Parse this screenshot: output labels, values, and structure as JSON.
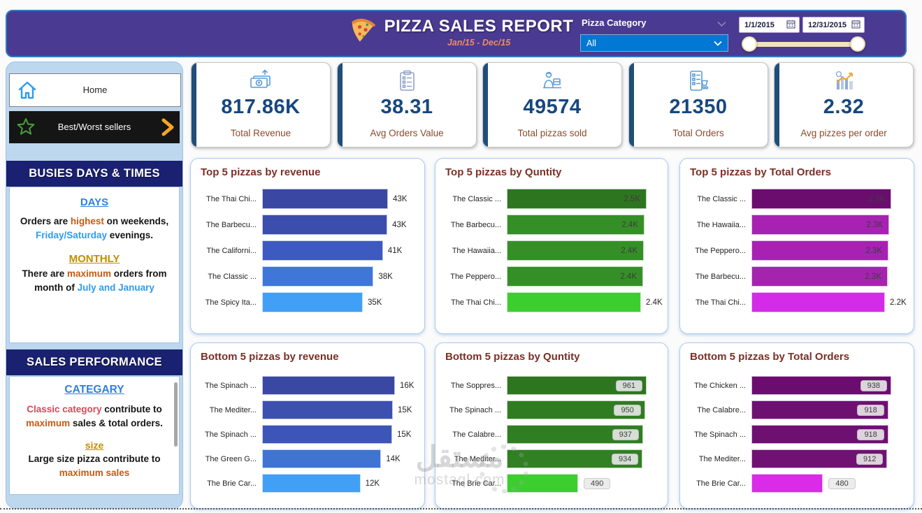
{
  "header": {
    "title": "PIZZA SALES REPORT",
    "subtitle": "Jan/15 - Dec/15",
    "category_label": "Pizza Category",
    "category_selected": "All",
    "date_start": "1/1/2015",
    "date_end": "12/31/2015"
  },
  "sidebar": {
    "home": "Home",
    "best_worst": "Best/Worst sellers",
    "section1_title": "BUSIES DAYS & TIMES",
    "days": {
      "heading": "DAYS",
      "p1": "Orders are ",
      "p2": "highest",
      "p3": " on weekends, ",
      "p4": "Friday/Saturday",
      "p5": " evenings."
    },
    "monthly": {
      "heading": "MONTHLY",
      "p1": "There are ",
      "p2": "maximum",
      "p3": " orders from month of ",
      "p4": "July and January"
    },
    "section2_title": "SALES PERFORMANCE",
    "category": {
      "heading": "CATEGARY",
      "p1": "Classic category",
      "p2": " contribute to ",
      "p3": "maximum",
      "p4": " sales & total orders."
    },
    "size": {
      "heading": "size",
      "p1": "Large size pizza contribute to ",
      "p2": "maximum sales"
    }
  },
  "kpis": [
    {
      "icon": "money-growth-icon",
      "value": "817.86K",
      "label": "Total Revenue"
    },
    {
      "icon": "clipboard-icon",
      "value": "38.31",
      "label": "Avg Orders Value"
    },
    {
      "icon": "delivery-person-icon",
      "value": "49574",
      "label": "Total pizzas sold"
    },
    {
      "icon": "order-list-cart-icon",
      "value": "21350",
      "label": "Total Orders"
    },
    {
      "icon": "analytics-chart-icon",
      "value": "2.32",
      "label": "Avg pizzes per order"
    }
  ],
  "chart_data": [
    {
      "id": "top-5-revenue",
      "type": "bar",
      "title": "Top 5 pizzas by revenue",
      "xlim": [
        0,
        43000
      ],
      "legend": "none",
      "grid": false,
      "rows": [
        {
          "name": "The Thai Chi...",
          "value": 43000,
          "label": "43K",
          "pct": 100,
          "color": "#3A47A3",
          "label_pos": "outside"
        },
        {
          "name": "The Barbecu...",
          "value": 43000,
          "label": "43K",
          "pct": 99.5,
          "color": "#3B4DAD",
          "label_pos": "outside"
        },
        {
          "name": "The Californi...",
          "value": 41000,
          "label": "41K",
          "pct": 96,
          "color": "#3D5AC0",
          "label_pos": "outside"
        },
        {
          "name": "The Classic ...",
          "value": 38000,
          "label": "38K",
          "pct": 88.5,
          "color": "#3E77D7",
          "label_pos": "outside"
        },
        {
          "name": "The Spicy Ita...",
          "value": 35000,
          "label": "35K",
          "pct": 80,
          "color": "#41A0F6",
          "label_pos": "outside"
        }
      ]
    },
    {
      "id": "top-5-quantity",
      "type": "bar",
      "title": "Top 5 pizzas by Quntity",
      "xlim": [
        0,
        2500
      ],
      "legend": "none",
      "grid": false,
      "rows": [
        {
          "name": "The Classic ...",
          "value": 2500,
          "label": "2.5K",
          "pct": 100,
          "color": "#2E7520",
          "label_pos": "inside"
        },
        {
          "name": "The Barbecu...",
          "value": 2400,
          "label": "2.4K",
          "pct": 98.5,
          "color": "#349026",
          "label_pos": "inside"
        },
        {
          "name": "The Hawaiia...",
          "value": 2400,
          "label": "2.4K",
          "pct": 98,
          "color": "#349026",
          "label_pos": "inside"
        },
        {
          "name": "The Peppero...",
          "value": 2400,
          "label": "2.4K",
          "pct": 97.5,
          "color": "#349026",
          "label_pos": "inside"
        },
        {
          "name": "The Thai Chi...",
          "value": 2400,
          "label": "2.4K",
          "pct": 96,
          "color": "#3CCE2F",
          "label_pos": "outside"
        }
      ]
    },
    {
      "id": "top-5-total-orders",
      "type": "bar",
      "title": "Top 5 pizzas by Total Orders",
      "xlim": [
        0,
        2300
      ],
      "legend": "none",
      "grid": false,
      "rows": [
        {
          "name": "The Classic ...",
          "value": 2300,
          "label": "2.3K",
          "pct": 100,
          "color": "#6A0D6E",
          "label_pos": "inside"
        },
        {
          "name": "The Hawaiia...",
          "value": 2300,
          "label": "2.3K",
          "pct": 98.5,
          "color": "#A722B2",
          "label_pos": "inside"
        },
        {
          "name": "The Peppero...",
          "value": 2300,
          "label": "2.3K",
          "pct": 98,
          "color": "#A722B2",
          "label_pos": "inside"
        },
        {
          "name": "The Barbecu...",
          "value": 2300,
          "label": "2.3K",
          "pct": 97.5,
          "color": "#A424AE",
          "label_pos": "inside"
        },
        {
          "name": "The Thai Chi...",
          "value": 2200,
          "label": "2.2K",
          "pct": 95.5,
          "color": "#D42BE8",
          "label_pos": "outside"
        }
      ]
    },
    {
      "id": "bottom-5-revenue",
      "type": "bar",
      "title": "Bottom 5 pizzas by revenue",
      "xlim": [
        0,
        16000
      ],
      "legend": "none",
      "grid": false,
      "rows": [
        {
          "name": "The Spinach ...",
          "value": 16000,
          "label": "16K",
          "pct": 100,
          "color": "#3A47A3",
          "label_pos": "outside"
        },
        {
          "name": "The Mediter...",
          "value": 15000,
          "label": "15K",
          "pct": 98.4,
          "color": "#3C50B0",
          "label_pos": "outside"
        },
        {
          "name": "The Spinach ...",
          "value": 15000,
          "label": "15K",
          "pct": 97.9,
          "color": "#3D55B8",
          "label_pos": "outside"
        },
        {
          "name": "The Green G...",
          "value": 14000,
          "label": "14K",
          "pct": 89.6,
          "color": "#3F74D3",
          "label_pos": "outside"
        },
        {
          "name": "The Brie Car...",
          "value": 12000,
          "label": "12K",
          "pct": 74,
          "color": "#41A0F6",
          "label_pos": "outside"
        }
      ]
    },
    {
      "id": "bottom-5-quantity",
      "type": "bar",
      "title": "Bottom 5 pizzas by Quntity",
      "xlim": [
        0,
        961
      ],
      "legend": "none",
      "grid": false,
      "rows": [
        {
          "name": "The Soppres...",
          "value": 961,
          "label": "961",
          "pct": 100,
          "color": "#2E7520",
          "label_pos": "pill-inside"
        },
        {
          "name": "The Spinach ...",
          "value": 950,
          "label": "950",
          "pct": 98.9,
          "color": "#2F7C21",
          "label_pos": "pill-inside"
        },
        {
          "name": "The Calabre...",
          "value": 937,
          "label": "937",
          "pct": 97.5,
          "color": "#307E22",
          "label_pos": "pill-inside"
        },
        {
          "name": "The Mediter...",
          "value": 934,
          "label": "934",
          "pct": 97.2,
          "color": "#318023",
          "label_pos": "pill-inside"
        },
        {
          "name": "The Brie Car...",
          "value": 490,
          "label": "490",
          "pct": 51,
          "color": "#3CCE2F",
          "label_pos": "pill-outside"
        }
      ]
    },
    {
      "id": "bottom-5-total-orders",
      "type": "bar",
      "title": "Bottom 5 pizzas by Total Orders",
      "xlim": [
        0,
        938
      ],
      "legend": "none",
      "grid": false,
      "rows": [
        {
          "name": "The Chicken ...",
          "value": 938,
          "label": "938",
          "pct": 100,
          "color": "#6A0D6E",
          "label_pos": "pill-inside"
        },
        {
          "name": "The Calabre...",
          "value": 918,
          "label": "918",
          "pct": 97.9,
          "color": "#6E1072",
          "label_pos": "pill-inside"
        },
        {
          "name": "The Spinach ...",
          "value": 918,
          "label": "918",
          "pct": 97.9,
          "color": "#6E1072",
          "label_pos": "pill-inside"
        },
        {
          "name": "The Mediter...",
          "value": 912,
          "label": "912",
          "pct": 97.2,
          "color": "#701173",
          "label_pos": "pill-inside"
        },
        {
          "name": "The Brie Car...",
          "value": 480,
          "label": "480",
          "pct": 51.2,
          "color": "#D92BE8",
          "label_pos": "pill-outside"
        }
      ]
    }
  ],
  "watermark": {
    "arabic": "مستقل",
    "domain": "mostaql.com"
  },
  "colors": {
    "header_purple": "#4A3A92",
    "header_border_blue": "#2F7BC0",
    "navy_section": "#1A2170",
    "sidebar_blue": "#BDD7EE",
    "dropdown_blue": "#0078D4",
    "kpi_number_blue": "#17477E",
    "kpi_label_brown": "#8B4A2B",
    "chart_title_brown": "#7A3024",
    "highlight_brown": "#C55A11",
    "highlight_blue": "#2E9BF0",
    "highlight_red": "#E04558",
    "highlight_gold": "#BF8F00",
    "slider_cream": "#F2E2BD"
  }
}
